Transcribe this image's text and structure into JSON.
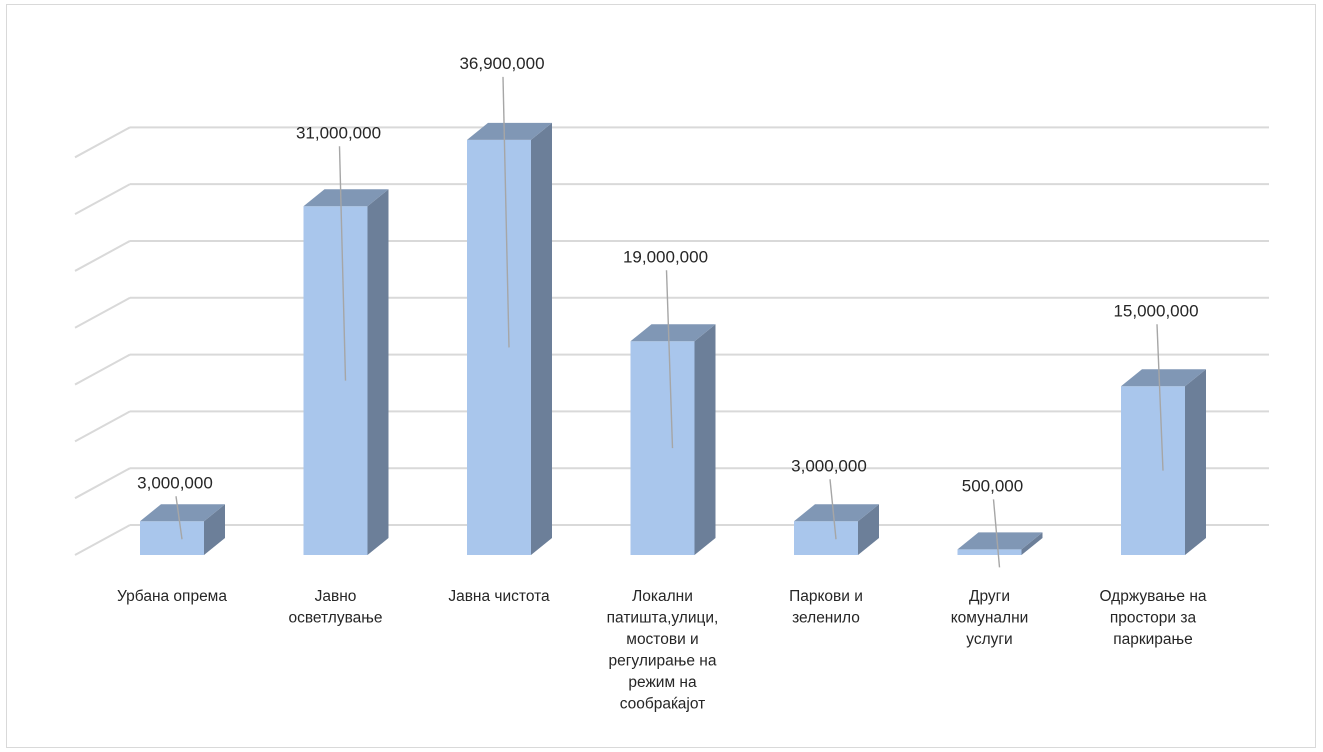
{
  "chart_data": {
    "type": "bar",
    "style": "3d-column",
    "categories": [
      [
        "Урбана опрема"
      ],
      [
        "Јавно",
        "осветлување"
      ],
      [
        "Јавна чистота"
      ],
      [
        "Локални",
        "патишта,улици,",
        "мостови и",
        "регулирање на",
        "режим на",
        "сообраќајот"
      ],
      [
        "Паркови и",
        "зеленило"
      ],
      [
        "Други",
        "комунални",
        "услуги"
      ],
      [
        "Одржување на",
        "простори за",
        "паркирање"
      ]
    ],
    "values": [
      3000000,
      31000000,
      36900000,
      19000000,
      3000000,
      500000,
      15000000
    ],
    "value_labels": [
      "3,000,000",
      "31,000,000",
      "36,900,000",
      "19,000,000",
      "3,000,000",
      "500,000",
      "15,000,000"
    ],
    "ylim": [
      0,
      40000000
    ],
    "grid": true,
    "legend": "none",
    "title": "",
    "xlabel": "",
    "ylabel": "",
    "colors": {
      "front": "#a9c6ec",
      "top": "#8097b5",
      "side": "#6c7f99",
      "gridline": "#d9d9d9",
      "leader": "#a6a6a6",
      "text": "#262626"
    }
  }
}
